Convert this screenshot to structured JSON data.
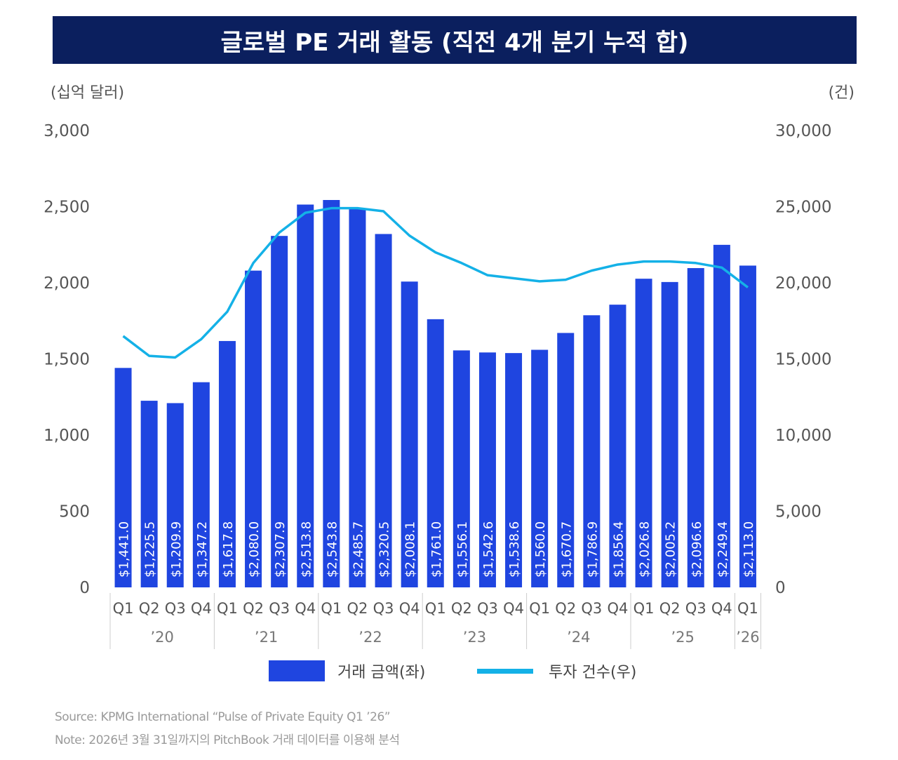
{
  "title": "글로벌 PE 거래 활동 (직전 4개 분기 누적 합)",
  "source": "Source: KPMG International “Pulse of Private Equity Q1 ’26”",
  "note": "Note: 2026년 3월 31일까지의 PitchBook 거래 데이터를 이용해 분석",
  "colors": {
    "title_bg": "#0b1f5e",
    "bar": "#1f45e0",
    "line": "#14b1e7"
  },
  "chart_data": {
    "type": "bar+line",
    "title": "글로벌 PE 거래 활동 (직전 4개 분기 누적 합)",
    "ylabel_left": "(십억 달러)",
    "ylabel_right": "(건)",
    "ylim_left": [
      0,
      3000
    ],
    "ylim_right": [
      0,
      30000
    ],
    "yticks_left": [
      "0",
      "500",
      "1,000",
      "1,500",
      "2,000",
      "2,500",
      "3,000"
    ],
    "yticks_right": [
      "0",
      "5,000",
      "10,000",
      "15,000",
      "20,000",
      "25,000",
      "30,000"
    ],
    "grid": false,
    "legend_position": "bottom",
    "categories": [
      "Q1",
      "Q2",
      "Q3",
      "Q4",
      "Q1",
      "Q2",
      "Q3",
      "Q4",
      "Q1",
      "Q2",
      "Q3",
      "Q4",
      "Q1",
      "Q2",
      "Q3",
      "Q4",
      "Q1",
      "Q2",
      "Q3",
      "Q4",
      "Q1",
      "Q2",
      "Q3",
      "Q4",
      "Q1"
    ],
    "years": [
      {
        "label": "’20",
        "count": 4
      },
      {
        "label": "’21",
        "count": 4
      },
      {
        "label": "’22",
        "count": 4
      },
      {
        "label": "’23",
        "count": 4
      },
      {
        "label": "’24",
        "count": 4
      },
      {
        "label": "’25",
        "count": 4
      },
      {
        "label": "’26",
        "count": 1
      }
    ],
    "series": [
      {
        "name": "거래 금액(좌)",
        "type": "bar",
        "axis": "left",
        "values": [
          1441.0,
          1225.5,
          1209.9,
          1347.2,
          1617.8,
          2080.0,
          2307.9,
          2513.8,
          2543.8,
          2485.7,
          2320.5,
          2008.1,
          1761.0,
          1556.1,
          1542.6,
          1538.6,
          1560.0,
          1670.7,
          1786.9,
          1856.4,
          2026.8,
          2005.2,
          2096.6,
          2249.4,
          2113.0
        ],
        "labels": [
          "$1,441.0",
          "$1,225.5",
          "$1,209.9",
          "$1,347.2",
          "$1,617.8",
          "$2,080.0",
          "$2,307.9",
          "$2,513.8",
          "$2,543.8",
          "$2,485.7",
          "$2,320.5",
          "$2,008.1",
          "$1,761.0",
          "$1,556.1",
          "$1,542.6",
          "$1,538.6",
          "$1,560.0",
          "$1,670.7",
          "$1,786.9",
          "$1,856.4",
          "$2,026.8",
          "$2,005.2",
          "$2,096.6",
          "$2,249.4",
          "$2,113.0"
        ]
      },
      {
        "name": "투자 건수(우)",
        "type": "line",
        "axis": "right",
        "values": [
          16500,
          15200,
          15100,
          16300,
          18100,
          21300,
          23300,
          24600,
          24900,
          24900,
          24700,
          23100,
          22000,
          21300,
          20500,
          20300,
          20100,
          20200,
          20800,
          21200,
          21400,
          21400,
          21300,
          21000,
          19700
        ]
      }
    ]
  }
}
